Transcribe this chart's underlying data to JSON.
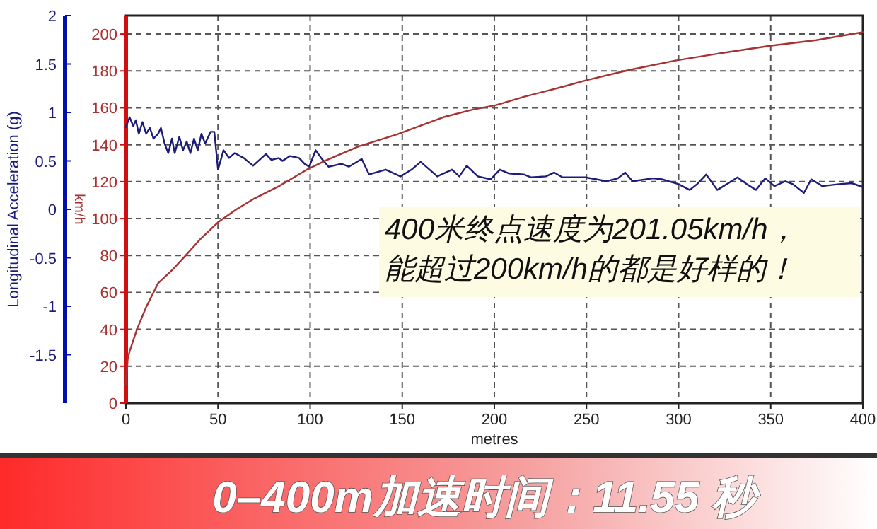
{
  "chart_data": {
    "type": "line",
    "title": "0–400m加速时间：11.55 秒",
    "xlabel": "metres",
    "ylabel": "Longitudinal Acceleration (g)",
    "y2label": "km/h",
    "annotations": [
      "400米终点速度为201.05km/h，",
      "能超过200km/h的都是好样的！"
    ],
    "xlim": [
      0,
      400
    ],
    "xticks": [
      0,
      50,
      100,
      150,
      200,
      250,
      300,
      350,
      400
    ],
    "ylim": [
      -2,
      2
    ],
    "yticks": [
      2,
      1.5,
      1,
      0.5,
      0,
      -0.5,
      -1,
      -1.5
    ],
    "y2lim": [
      0,
      210
    ],
    "y2ticks": [
      0,
      20,
      40,
      60,
      80,
      100,
      120,
      140,
      160,
      180,
      200
    ],
    "grid": true,
    "line_style": "solid",
    "series": [
      {
        "color": "#1c1c7a",
        "axis": "y",
        "x": [
          0,
          2,
          4,
          5.4,
          7,
          9,
          11,
          13,
          15,
          17.5,
          19,
          21,
          23,
          25,
          26.5,
          29,
          31,
          33,
          35,
          37,
          39,
          41,
          43,
          46,
          48,
          50,
          53,
          56,
          59,
          64,
          69,
          76,
          79,
          83,
          85,
          89,
          94,
          97,
          99.5,
          103,
          106,
          110,
          117,
          121,
          128,
          132,
          141,
          149,
          155,
          160,
          169,
          177,
          181,
          185,
          191,
          198,
          203,
          208,
          216,
          220,
          228,
          232.5,
          237,
          249.5,
          261,
          267,
          271,
          275,
          286,
          291,
          300,
          306,
          310,
          315,
          321,
          327,
          332,
          337,
          342,
          347,
          352,
          358,
          362,
          368,
          372,
          378,
          387,
          394,
          400
        ],
        "values": [
          0.85,
          0.95,
          0.86,
          0.92,
          0.78,
          0.9,
          0.78,
          0.84,
          0.73,
          0.78,
          0.84,
          0.68,
          0.58,
          0.73,
          0.58,
          0.75,
          0.61,
          0.7,
          0.58,
          0.73,
          0.61,
          0.78,
          0.68,
          0.8,
          0.8,
          0.41,
          0.61,
          0.53,
          0.58,
          0.53,
          0.45,
          0.57,
          0.51,
          0.53,
          0.5,
          0.55,
          0.53,
          0.47,
          0.44,
          0.61,
          0.53,
          0.44,
          0.47,
          0.44,
          0.52,
          0.36,
          0.41,
          0.34,
          0.41,
          0.49,
          0.34,
          0.41,
          0.34,
          0.45,
          0.34,
          0.31,
          0.41,
          0.37,
          0.36,
          0.33,
          0.34,
          0.38,
          0.33,
          0.33,
          0.29,
          0.32,
          0.38,
          0.29,
          0.32,
          0.31,
          0.26,
          0.2,
          0.26,
          0.36,
          0.2,
          0.27,
          0.33,
          0.26,
          0.2,
          0.32,
          0.24,
          0.29,
          0.26,
          0.17,
          0.31,
          0.24,
          0.26,
          0.27,
          0.23
        ]
      },
      {
        "color": "#a83232",
        "axis": "y2",
        "x": [
          0,
          1,
          2,
          6,
          11,
          17.5,
          25,
          31.5,
          40.5,
          50,
          60,
          70,
          83,
          98,
          108.5,
          126,
          147,
          172.5,
          188,
          201,
          216,
          235.6,
          250,
          273.5,
          298.8,
          324,
          349.6,
          374.7,
          400
        ],
        "values": [
          10,
          24,
          28,
          40,
          52,
          65,
          72,
          79,
          89,
          98,
          105,
          111,
          117.5,
          126.4,
          131.5,
          139,
          145.6,
          155,
          159,
          161.5,
          166,
          171,
          175,
          180.6,
          185.7,
          189.8,
          193.6,
          196.7,
          201
        ]
      }
    ]
  }
}
